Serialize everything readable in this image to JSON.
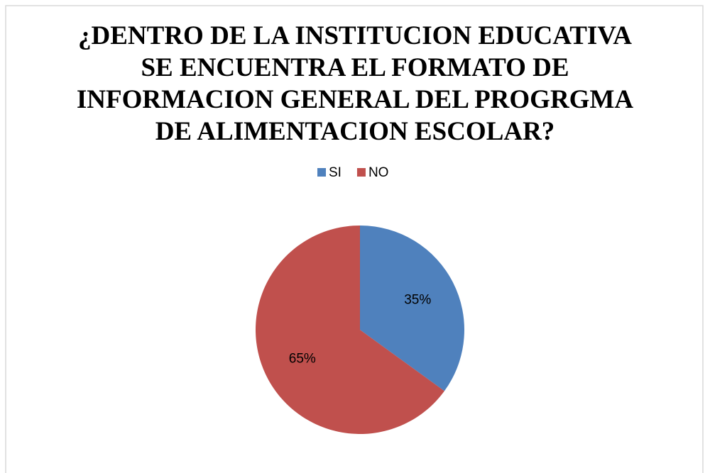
{
  "chart_data": {
    "type": "pie",
    "title": "¿DENTRO DE LA INSTITUCION EDUCATIVA SE ENCUENTRA EL FORMATO DE INFORMACION GENERAL DEL PROGRGMA DE ALIMENTACION ESCOLAR?",
    "categories": [
      "SI",
      "NO"
    ],
    "values": [
      35,
      65
    ],
    "value_labels": [
      "35%",
      "65%"
    ],
    "colors": [
      "#4f81bd",
      "#c0504d"
    ],
    "legend": "top"
  }
}
